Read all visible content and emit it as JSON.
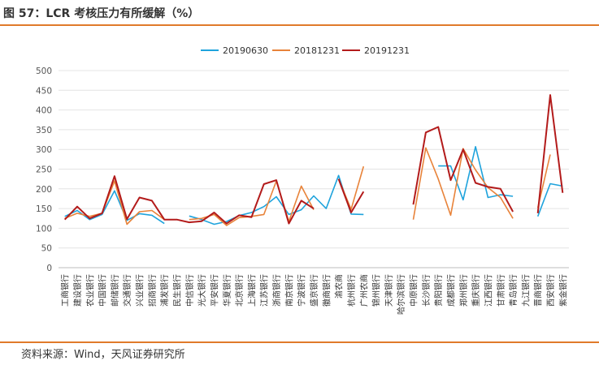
{
  "header": {
    "title": "图 57：LCR 考核压力有所缓解（%）"
  },
  "footer": {
    "source": "资料来源：Wind，天风证券研究所"
  },
  "colors": {
    "accent": "#e07a2a",
    "s1": "#1fa3dc",
    "s2": "#e8833a",
    "s3": "#b31b1b"
  },
  "chart_data": {
    "type": "line",
    "title": "",
    "xlabel": "",
    "ylabel": "",
    "ylim": [
      0,
      500
    ],
    "yticks": [
      0,
      50,
      100,
      150,
      200,
      250,
      300,
      350,
      400,
      450,
      500
    ],
    "grid": true,
    "legend": "top-center",
    "categories": [
      "工商银行",
      "建设银行",
      "农业银行",
      "中国银行",
      "邮储银行",
      "交通银行",
      "兴业银行",
      "招商银行",
      "浦发银行",
      "民生银行",
      "中信银行",
      "光大银行",
      "平安银行",
      "华夏银行",
      "北京银行",
      "上海银行",
      "江苏银行",
      "浙商银行",
      "南京银行",
      "宁波银行",
      "盛京银行",
      "徽商银行",
      "渝农商",
      "杭州银行",
      "广州农商",
      "锦州银行",
      "天津银行",
      "哈尔滨银行",
      "中原银行",
      "长沙银行",
      "贵阳银行",
      "成都银行",
      "郑州银行",
      "重庆银行",
      "江西银行",
      "甘肃银行",
      "青岛银行",
      "九江银行",
      "晋商银行",
      "西安银行",
      "紫金银行"
    ],
    "series": [
      {
        "name": "20190630",
        "color": "#1fa3dc",
        "values": [
          130,
          145,
          122,
          135,
          195,
          120,
          137,
          133,
          112,
          null,
          131,
          122,
          110,
          117,
          132,
          140,
          155,
          180,
          135,
          147,
          182,
          150,
          234,
          136,
          135,
          null,
          null,
          null,
          null,
          null,
          258,
          258,
          172,
          307,
          178,
          185,
          181,
          null,
          130,
          213,
          207
        ]
      },
      {
        "name": "20181231",
        "color": "#e8833a",
        "values": [
          125,
          138,
          130,
          138,
          220,
          110,
          142,
          145,
          122,
          null,
          122,
          125,
          135,
          107,
          127,
          130,
          135,
          220,
          117,
          207,
          147,
          null,
          225,
          148,
          257,
          null,
          null,
          null,
          122,
          304,
          225,
          133,
          302,
          248,
          203,
          178,
          125,
          null,
          152,
          287,
          null
        ]
      },
      {
        "name": "20191231",
        "color": "#b31b1b",
        "values": [
          122,
          155,
          125,
          138,
          232,
          123,
          178,
          170,
          122,
          122,
          115,
          118,
          140,
          112,
          133,
          128,
          212,
          222,
          112,
          170,
          150,
          null,
          225,
          140,
          193,
          null,
          null,
          null,
          160,
          343,
          357,
          222,
          300,
          215,
          205,
          200,
          142,
          null,
          138,
          438,
          190
        ]
      }
    ]
  }
}
